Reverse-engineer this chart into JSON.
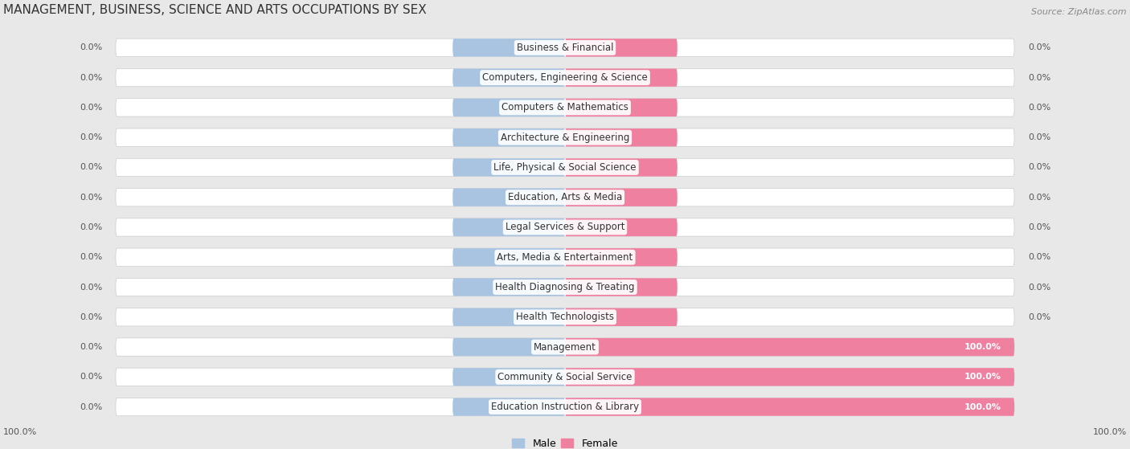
{
  "title": "MANAGEMENT, BUSINESS, SCIENCE AND ARTS OCCUPATIONS BY SEX",
  "source": "Source: ZipAtlas.com",
  "categories": [
    "Business & Financial",
    "Computers, Engineering & Science",
    "Computers & Mathematics",
    "Architecture & Engineering",
    "Life, Physical & Social Science",
    "Education, Arts & Media",
    "Legal Services & Support",
    "Arts, Media & Entertainment",
    "Health Diagnosing & Treating",
    "Health Technologists",
    "Management",
    "Community & Social Service",
    "Education Instruction & Library"
  ],
  "male_values": [
    0.0,
    0.0,
    0.0,
    0.0,
    0.0,
    0.0,
    0.0,
    0.0,
    0.0,
    0.0,
    0.0,
    0.0,
    0.0
  ],
  "female_values": [
    0.0,
    0.0,
    0.0,
    0.0,
    0.0,
    0.0,
    0.0,
    0.0,
    0.0,
    0.0,
    100.0,
    100.0,
    100.0
  ],
  "male_color": "#a8c4e0",
  "female_color": "#f080a0",
  "bg_color": "#e8e8e8",
  "row_bg_color": "#ffffff",
  "label_fontsize": 8.5,
  "title_fontsize": 11,
  "value_fontsize": 8,
  "legend_fontsize": 9,
  "default_bar_pct": 25.0
}
